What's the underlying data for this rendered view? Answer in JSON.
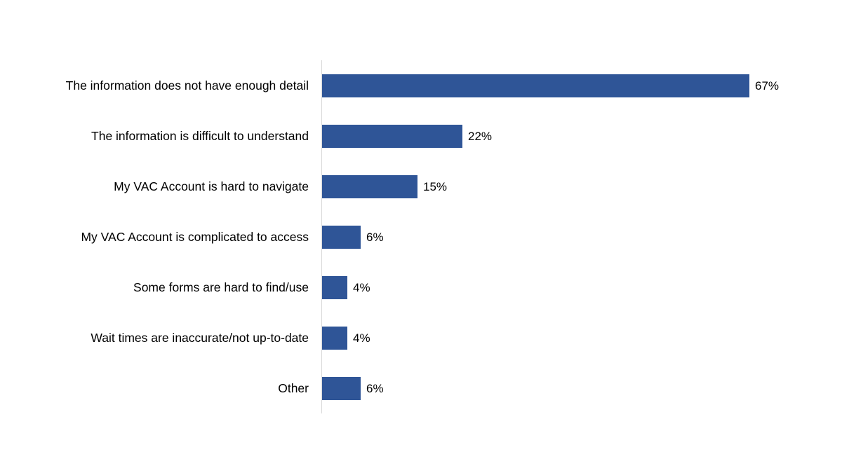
{
  "chart_data": {
    "type": "bar",
    "orientation": "horizontal",
    "title": "",
    "xlabel": "",
    "ylabel": "",
    "categories": [
      "The information does not have enough detail",
      "The information is difficult to understand",
      "My VAC Account is hard to navigate",
      "My VAC Account is complicated to access",
      "Some forms are hard to find/use",
      "Wait times are inaccurate/not up-to-date",
      "Other"
    ],
    "values": [
      67,
      22,
      15,
      6,
      4,
      4,
      6
    ],
    "value_labels": [
      "67%",
      "22%",
      "15%",
      "6%",
      "4%",
      "4%",
      "6%"
    ],
    "unit": "%",
    "xlim": [
      0,
      70
    ],
    "grid": false,
    "legend": null,
    "bar_color": "#2f5597"
  }
}
